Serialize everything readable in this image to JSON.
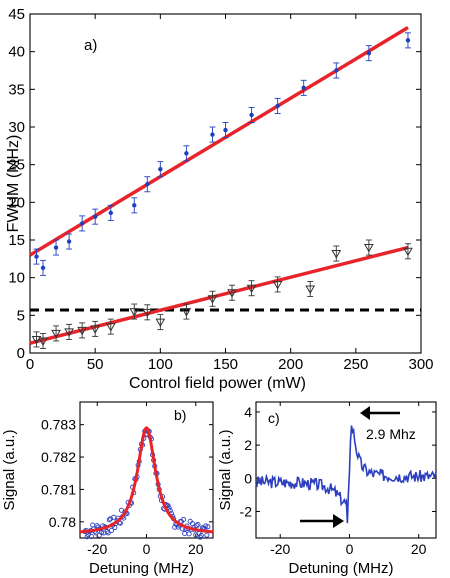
{
  "chart_data": [
    {
      "type": "scatter",
      "panel_label": "a)",
      "xlabel": "Control field power (mW)",
      "ylabel": "FWHM (MHz)",
      "xlim": [
        0,
        300
      ],
      "ylim": [
        0,
        45
      ],
      "xticks": [
        "0",
        "50",
        "100",
        "150",
        "200",
        "250",
        "300"
      ],
      "yticks": [
        "0",
        "5",
        "10",
        "15",
        "20",
        "25",
        "30",
        "35",
        "40",
        "45"
      ],
      "series": [
        {
          "marker": "dot",
          "color": "#1f3fbf",
          "x": [
            5,
            10,
            20,
            30,
            40,
            50,
            62,
            80,
            90,
            100,
            120,
            140,
            150,
            170,
            190,
            210,
            235,
            260,
            290
          ],
          "y": [
            12.8,
            11.3,
            14.0,
            14.8,
            17.2,
            18.1,
            18.6,
            19.6,
            22.4,
            24.4,
            26.5,
            29.0,
            29.6,
            31.6,
            32.8,
            35.2,
            37.5,
            39.8,
            41.5
          ],
          "err": [
            1.0,
            1.0,
            1.0,
            1.0,
            1.0,
            1.0,
            1.0,
            1.0,
            1.0,
            1.0,
            1.0,
            1.0,
            1.0,
            1.0,
            1.0,
            1.0,
            1.0,
            1.0,
            1.0
          ]
        },
        {
          "marker": "triangle-down",
          "color": "#333333",
          "x": [
            5,
            10,
            20,
            30,
            40,
            50,
            62,
            80,
            90,
            100,
            120,
            140,
            155,
            170,
            190,
            215,
            235,
            260,
            290
          ],
          "y": [
            1.8,
            1.6,
            2.6,
            2.8,
            3.0,
            3.2,
            3.5,
            5.5,
            5.4,
            4.1,
            5.5,
            7.2,
            8.0,
            8.6,
            9.1,
            8.5,
            13.2,
            14.0,
            13.5
          ],
          "err": [
            1.0,
            1.0,
            1.0,
            1.0,
            1.0,
            1.0,
            1.0,
            1.0,
            1.0,
            1.0,
            1.0,
            1.0,
            1.0,
            1.0,
            1.0,
            1.0,
            1.0,
            1.0,
            1.0
          ]
        }
      ],
      "fit_lines": [
        {
          "color": "#e8242b",
          "x": [
            0,
            290
          ],
          "y": [
            13.0,
            43.2
          ]
        },
        {
          "color": "#e8242b",
          "x": [
            0,
            290
          ],
          "y": [
            1.3,
            14.0
          ]
        }
      ],
      "hline": {
        "y": 5.7,
        "style": "dashed",
        "color": "#000000"
      }
    },
    {
      "type": "scatter",
      "panel_label": "b)",
      "xlabel": "Detuning (MHz)",
      "ylabel": "Signal (a.u.)",
      "xlim": [
        -27,
        27
      ],
      "ylim": [
        0.7795,
        0.7837
      ],
      "xticks": [
        "-20",
        "0",
        "20"
      ],
      "yticks": [
        "0.78",
        "0.781",
        "0.782",
        "0.783"
      ],
      "ytick_values": [
        0.78,
        0.781,
        0.782,
        0.783
      ],
      "xtick_values": [
        -20,
        0,
        20
      ],
      "points_color": "#2d3fbf",
      "fit_color": "#e8242b",
      "fit": {
        "baseline": 0.7796,
        "peak": 0.7829,
        "hwhm": 4.5
      },
      "noise_amplitude": 0.00022
    },
    {
      "type": "line",
      "panel_label": "c)",
      "xlabel": "Detuning (MHz)",
      "ylabel": "Signal (a.u.)",
      "xlim": [
        -27,
        25
      ],
      "ylim": [
        -3.6,
        4.6
      ],
      "xticks": [
        "-20",
        "0",
        "20"
      ],
      "xtick_values": [
        -20,
        0,
        20
      ],
      "yticks": [
        "-2",
        "0",
        "2",
        "4"
      ],
      "ytick_values": [
        -2,
        0,
        2,
        4
      ],
      "color": "#2d3fbf",
      "annotation": "2.9 Mhz"
    }
  ]
}
